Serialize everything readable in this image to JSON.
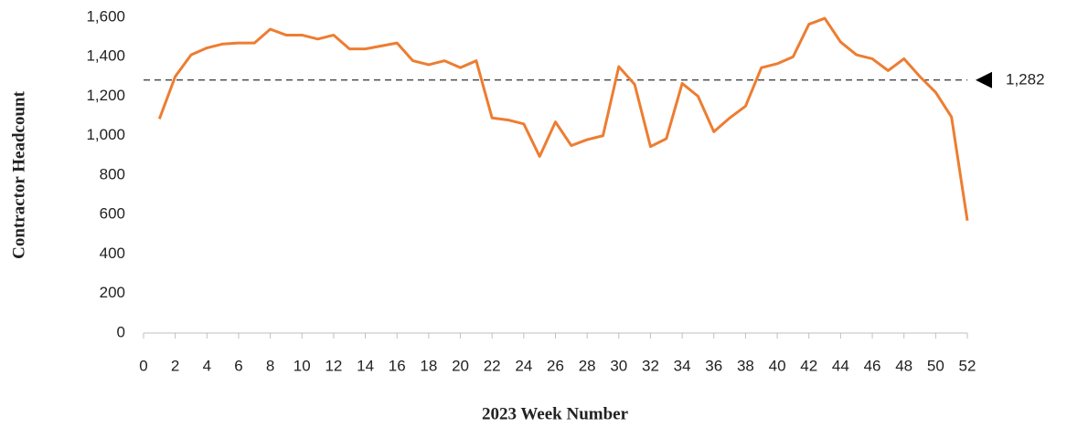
{
  "chart_data": {
    "type": "line",
    "x_label": "2023 Week Number",
    "y_label": "Contractor Headcount",
    "x": [
      1,
      2,
      3,
      4,
      5,
      6,
      7,
      8,
      9,
      10,
      11,
      12,
      13,
      14,
      15,
      16,
      17,
      18,
      19,
      20,
      21,
      22,
      23,
      24,
      25,
      26,
      27,
      28,
      29,
      30,
      31,
      32,
      33,
      34,
      35,
      36,
      37,
      38,
      39,
      40,
      41,
      42,
      43,
      44,
      45,
      46,
      47,
      48,
      49,
      50,
      51,
      52
    ],
    "values": [
      1085,
      1300,
      1410,
      1445,
      1465,
      1470,
      1470,
      1540,
      1510,
      1510,
      1490,
      1510,
      1440,
      1440,
      1455,
      1470,
      1380,
      1360,
      1380,
      1345,
      1380,
      1090,
      1080,
      1060,
      895,
      1070,
      950,
      980,
      1000,
      1350,
      1260,
      945,
      985,
      1265,
      1200,
      1020,
      1090,
      1150,
      1345,
      1365,
      1400,
      1565,
      1595,
      1475,
      1410,
      1390,
      1330,
      1390,
      1300,
      1220,
      1095,
      570
    ],
    "color": "#ed7d31",
    "reference_line": {
      "value": 1282,
      "label": "1,282"
    },
    "xlim": [
      0,
      52
    ],
    "xticks": [
      0,
      2,
      4,
      6,
      8,
      10,
      12,
      14,
      16,
      18,
      20,
      22,
      24,
      26,
      28,
      30,
      32,
      34,
      36,
      38,
      40,
      42,
      44,
      46,
      48,
      50,
      52
    ],
    "ylim": [
      0,
      1600
    ],
    "yticks": [
      0,
      200,
      400,
      600,
      800,
      {
        "value": 1000,
        "label": "1,000"
      },
      {
        "value": 1200,
        "label": "1,200"
      },
      {
        "value": 1400,
        "label": "1,400"
      },
      {
        "value": 1600,
        "label": "1,600"
      }
    ]
  }
}
